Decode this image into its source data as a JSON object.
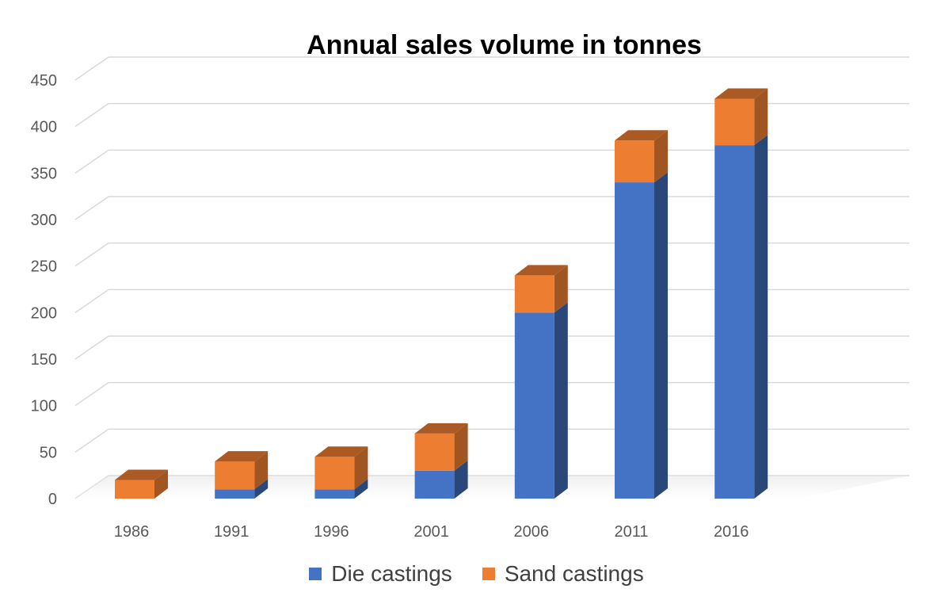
{
  "chart_data": {
    "type": "bar",
    "stacked": true,
    "title": "Annual sales volume in tonnes",
    "categories": [
      "1986",
      "1991",
      "1996",
      "2001",
      "2006",
      "2011",
      "2016"
    ],
    "series": [
      {
        "name": "Die castings",
        "values": [
          0,
          10,
          10,
          30,
          200,
          340,
          380
        ],
        "color": "#4472C4"
      },
      {
        "name": "Sand castings",
        "values": [
          20,
          30,
          35,
          40,
          40,
          45,
          50
        ],
        "color": "#ED7D31"
      }
    ],
    "ylim": [
      0,
      450
    ],
    "yticks": [
      "0",
      "50",
      "100",
      "150",
      "200",
      "250",
      "300",
      "350",
      "400",
      "450"
    ],
    "grid": true,
    "legend_position": "bottom",
    "style": "3d-column"
  }
}
